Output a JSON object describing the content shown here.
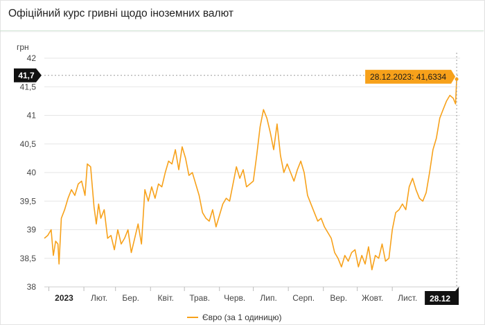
{
  "header": {
    "title": "Офіційний курс гривні щодо іноземних валют"
  },
  "chart_data": {
    "type": "line",
    "ylabel": "грн",
    "ylim": [
      38,
      42
    ],
    "yticks": [
      {
        "value": 38,
        "label": "38"
      },
      {
        "value": 38.5,
        "label": "38,5"
      },
      {
        "value": 39,
        "label": "39"
      },
      {
        "value": 39.5,
        "label": "39,5"
      },
      {
        "value": 40,
        "label": "40"
      },
      {
        "value": 40.5,
        "label": "40,5"
      },
      {
        "value": 41,
        "label": "41"
      },
      {
        "value": 41.5,
        "label": "41,5"
      },
      {
        "value": 42,
        "label": "42"
      }
    ],
    "xlim": [
      "2022-12-28",
      "2023-12-31"
    ],
    "xticks": [
      {
        "date": "2023-01-01",
        "label": "2023"
      },
      {
        "date": "2023-02-01",
        "label": "Лют."
      },
      {
        "date": "2023-03-01",
        "label": "Бер."
      },
      {
        "date": "2023-04-01",
        "label": "Квіт."
      },
      {
        "date": "2023-05-01",
        "label": "Трав."
      },
      {
        "date": "2023-06-01",
        "label": "Черв."
      },
      {
        "date": "2023-07-01",
        "label": "Лип."
      },
      {
        "date": "2023-08-01",
        "label": "Серп."
      },
      {
        "date": "2023-09-01",
        "label": "Вер."
      },
      {
        "date": "2023-10-01",
        "label": "Жовт."
      },
      {
        "date": "2023-11-01",
        "label": "Лист."
      }
    ],
    "crosshair": {
      "x_label": "28.12",
      "y_label": "41,7",
      "y_value": 41.7,
      "x_date": "2023-12-28",
      "tooltip": "28.12.2023: 41,6334"
    },
    "series": [
      {
        "name": "Євро (за 1 одиницю)",
        "color": "#f7a11a",
        "points": [
          [
            "2022-12-28",
            38.85
          ],
          [
            "2022-12-31",
            38.9
          ],
          [
            "2023-01-03",
            39.0
          ],
          [
            "2023-01-05",
            38.55
          ],
          [
            "2023-01-07",
            38.8
          ],
          [
            "2023-01-09",
            38.75
          ],
          [
            "2023-01-10",
            38.4
          ],
          [
            "2023-01-12",
            39.2
          ],
          [
            "2023-01-15",
            39.35
          ],
          [
            "2023-01-18",
            39.55
          ],
          [
            "2023-01-21",
            39.7
          ],
          [
            "2023-01-24",
            39.6
          ],
          [
            "2023-01-27",
            39.8
          ],
          [
            "2023-01-30",
            39.85
          ],
          [
            "2023-02-02",
            39.6
          ],
          [
            "2023-02-04",
            40.15
          ],
          [
            "2023-02-07",
            40.1
          ],
          [
            "2023-02-10",
            39.4
          ],
          [
            "2023-02-12",
            39.1
          ],
          [
            "2023-02-14",
            39.45
          ],
          [
            "2023-02-16",
            39.2
          ],
          [
            "2023-02-19",
            39.35
          ],
          [
            "2023-02-22",
            38.85
          ],
          [
            "2023-02-25",
            38.9
          ],
          [
            "2023-02-28",
            38.65
          ],
          [
            "2023-03-03",
            39.0
          ],
          [
            "2023-03-06",
            38.75
          ],
          [
            "2023-03-09",
            38.85
          ],
          [
            "2023-03-12",
            39.0
          ],
          [
            "2023-03-15",
            38.6
          ],
          [
            "2023-03-18",
            38.85
          ],
          [
            "2023-03-21",
            39.1
          ],
          [
            "2023-03-24",
            38.75
          ],
          [
            "2023-03-27",
            39.7
          ],
          [
            "2023-03-30",
            39.5
          ],
          [
            "2023-04-02",
            39.75
          ],
          [
            "2023-04-05",
            39.55
          ],
          [
            "2023-04-08",
            39.8
          ],
          [
            "2023-04-11",
            39.75
          ],
          [
            "2023-04-14",
            40.0
          ],
          [
            "2023-04-17",
            40.2
          ],
          [
            "2023-04-20",
            40.15
          ],
          [
            "2023-04-23",
            40.4
          ],
          [
            "2023-04-26",
            40.05
          ],
          [
            "2023-04-29",
            40.45
          ],
          [
            "2023-05-02",
            40.25
          ],
          [
            "2023-05-05",
            39.95
          ],
          [
            "2023-05-08",
            40.0
          ],
          [
            "2023-05-11",
            39.8
          ],
          [
            "2023-05-14",
            39.6
          ],
          [
            "2023-05-17",
            39.3
          ],
          [
            "2023-05-20",
            39.2
          ],
          [
            "2023-05-23",
            39.15
          ],
          [
            "2023-05-26",
            39.35
          ],
          [
            "2023-05-29",
            39.05
          ],
          [
            "2023-06-01",
            39.25
          ],
          [
            "2023-06-04",
            39.45
          ],
          [
            "2023-06-07",
            39.55
          ],
          [
            "2023-06-10",
            39.5
          ],
          [
            "2023-06-13",
            39.8
          ],
          [
            "2023-06-16",
            40.1
          ],
          [
            "2023-06-19",
            39.9
          ],
          [
            "2023-06-22",
            40.05
          ],
          [
            "2023-06-25",
            39.75
          ],
          [
            "2023-06-28",
            39.8
          ],
          [
            "2023-07-01",
            39.85
          ],
          [
            "2023-07-04",
            40.3
          ],
          [
            "2023-07-07",
            40.8
          ],
          [
            "2023-07-10",
            41.1
          ],
          [
            "2023-07-13",
            40.95
          ],
          [
            "2023-07-16",
            40.7
          ],
          [
            "2023-07-19",
            40.4
          ],
          [
            "2023-07-22",
            40.85
          ],
          [
            "2023-07-25",
            40.3
          ],
          [
            "2023-07-28",
            40.0
          ],
          [
            "2023-07-31",
            40.15
          ],
          [
            "2023-08-03",
            40.0
          ],
          [
            "2023-08-06",
            39.85
          ],
          [
            "2023-08-09",
            40.05
          ],
          [
            "2023-08-12",
            40.2
          ],
          [
            "2023-08-15",
            40.0
          ],
          [
            "2023-08-18",
            39.6
          ],
          [
            "2023-08-21",
            39.45
          ],
          [
            "2023-08-24",
            39.3
          ],
          [
            "2023-08-27",
            39.15
          ],
          [
            "2023-08-30",
            39.2
          ],
          [
            "2023-09-02",
            39.05
          ],
          [
            "2023-09-05",
            38.95
          ],
          [
            "2023-09-08",
            38.85
          ],
          [
            "2023-09-11",
            38.6
          ],
          [
            "2023-09-14",
            38.5
          ],
          [
            "2023-09-17",
            38.35
          ],
          [
            "2023-09-20",
            38.55
          ],
          [
            "2023-09-23",
            38.45
          ],
          [
            "2023-09-26",
            38.6
          ],
          [
            "2023-09-29",
            38.65
          ],
          [
            "2023-10-02",
            38.35
          ],
          [
            "2023-10-05",
            38.55
          ],
          [
            "2023-10-08",
            38.4
          ],
          [
            "2023-10-11",
            38.7
          ],
          [
            "2023-10-14",
            38.3
          ],
          [
            "2023-10-17",
            38.55
          ],
          [
            "2023-10-20",
            38.5
          ],
          [
            "2023-10-23",
            38.75
          ],
          [
            "2023-10-26",
            38.45
          ],
          [
            "2023-10-29",
            38.5
          ],
          [
            "2023-11-01",
            39.0
          ],
          [
            "2023-11-04",
            39.3
          ],
          [
            "2023-11-07",
            39.35
          ],
          [
            "2023-11-10",
            39.45
          ],
          [
            "2023-11-13",
            39.35
          ],
          [
            "2023-11-16",
            39.75
          ],
          [
            "2023-11-19",
            39.9
          ],
          [
            "2023-11-22",
            39.7
          ],
          [
            "2023-11-25",
            39.55
          ],
          [
            "2023-11-28",
            39.5
          ],
          [
            "2023-12-01",
            39.65
          ],
          [
            "2023-12-04",
            40.0
          ],
          [
            "2023-12-07",
            40.4
          ],
          [
            "2023-12-10",
            40.6
          ],
          [
            "2023-12-13",
            40.95
          ],
          [
            "2023-12-16",
            41.1
          ],
          [
            "2023-12-19",
            41.25
          ],
          [
            "2023-12-22",
            41.35
          ],
          [
            "2023-12-25",
            41.3
          ],
          [
            "2023-12-27",
            41.2
          ],
          [
            "2023-12-28",
            41.6334
          ]
        ]
      }
    ]
  }
}
